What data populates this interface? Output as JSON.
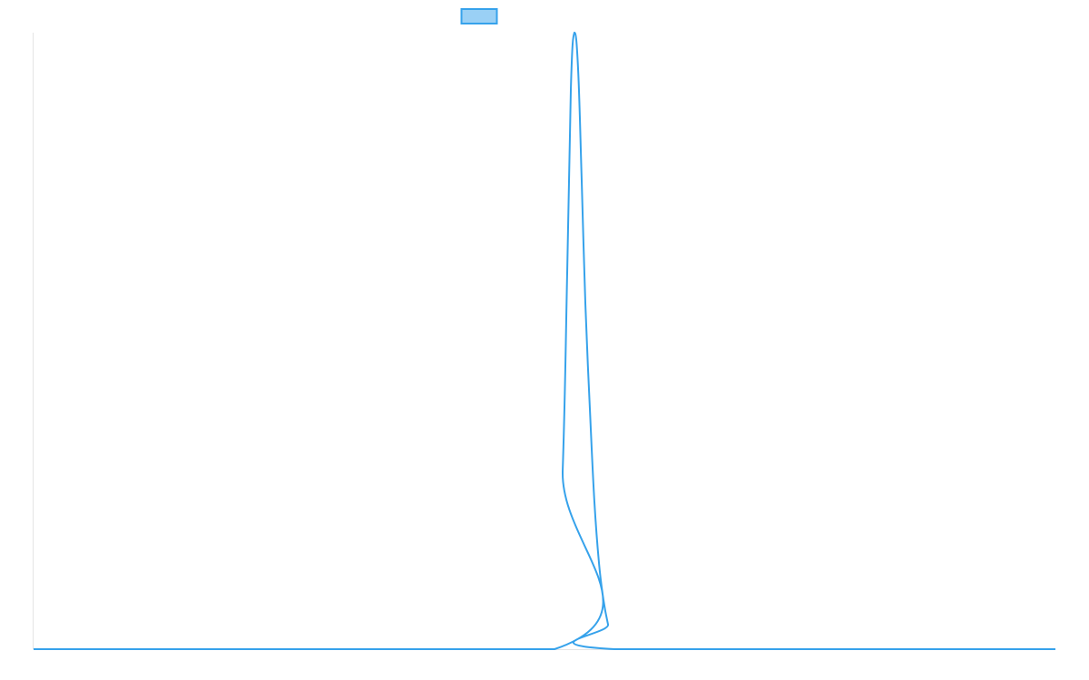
{
  "chart_data": {
    "type": "line",
    "title": "",
    "xlabel": "",
    "ylabel": "",
    "xlim": [
      0,
      100
    ],
    "ylim": [
      0,
      1
    ],
    "grid": false,
    "legend": {
      "placement": "top-center",
      "entries": [
        {
          "label": "",
          "color": "#36a2eb"
        }
      ]
    },
    "series": [
      {
        "name": "",
        "color": "#36a2eb",
        "fill": "#9ad0f5",
        "points": [
          [
            0,
            0
          ],
          [
            50.98,
            0
          ],
          [
            51.78,
            0.29
          ],
          [
            52.22,
            0.61
          ],
          [
            52.58,
            0.91
          ],
          [
            52.93,
            1
          ],
          [
            53.29,
            0.94
          ],
          [
            53.64,
            0.76
          ],
          [
            54.0,
            0.56
          ],
          [
            54.44,
            0.39
          ],
          [
            54.88,
            0.24
          ],
          [
            55.33,
            0.14
          ],
          [
            55.77,
            0.08
          ],
          [
            56.22,
            0.04
          ],
          [
            56.84,
            0
          ],
          [
            100,
            0
          ]
        ]
      }
    ]
  }
}
